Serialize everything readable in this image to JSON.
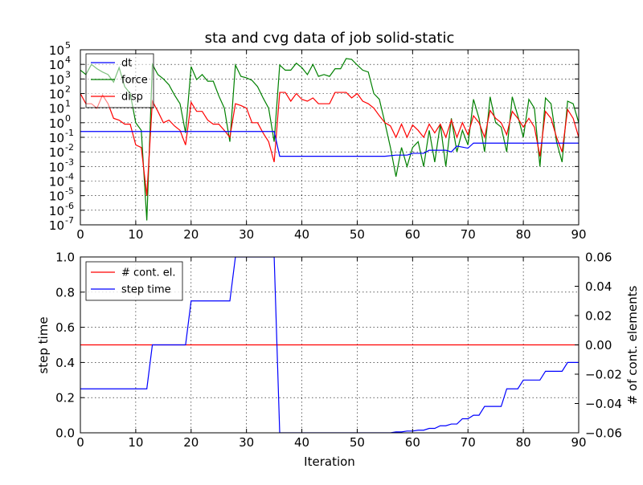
{
  "chart_data": [
    {
      "type": "line",
      "title": "sta and cvg data of job solid-static",
      "xlabel": "",
      "ylabel": "",
      "xlim": [
        0,
        90
      ],
      "ylim_log10": [
        -7,
        5
      ],
      "y_scale": "log",
      "grid": true,
      "legend_position": "top-left",
      "x_ticks": [
        "0",
        "10",
        "20",
        "30",
        "40",
        "50",
        "60",
        "70",
        "80",
        "90"
      ],
      "y_ticks_base": "10",
      "y_ticks_exp": [
        "-7",
        "-6",
        "-5",
        "-4",
        "-3",
        "-2",
        "-1",
        "0",
        "1",
        "2",
        "3",
        "4",
        "5"
      ],
      "series": [
        {
          "name": "dt",
          "color": "#0000ff",
          "points": [
            [
              0,
              0.25
            ],
            [
              35,
              0.25
            ],
            [
              36,
              0.005
            ],
            [
              55,
              0.005
            ],
            [
              57,
              0.006
            ],
            [
              59,
              0.006
            ],
            [
              60,
              0.008
            ],
            [
              62,
              0.008
            ],
            [
              63,
              0.013
            ],
            [
              66,
              0.013
            ],
            [
              67,
              0.01
            ],
            [
              68,
              0.025
            ],
            [
              70,
              0.018
            ],
            [
              71,
              0.04
            ],
            [
              90,
              0.04
            ]
          ]
        },
        {
          "name": "force",
          "color": "#008000",
          "points": [
            [
              0,
              4000
            ],
            [
              1,
              2000
            ],
            [
              2,
              10000
            ],
            [
              3,
              5000
            ],
            [
              4,
              3000
            ],
            [
              5,
              2000
            ],
            [
              6,
              600
            ],
            [
              7,
              6000
            ],
            [
              8,
              300
            ],
            [
              9,
              100
            ],
            [
              10,
              1
            ],
            [
              11,
              0.3
            ],
            [
              12,
              2e-07
            ],
            [
              13,
              10000
            ],
            [
              14,
              2000
            ],
            [
              15,
              1000
            ],
            [
              16,
              400
            ],
            [
              17,
              80
            ],
            [
              18,
              20
            ],
            [
              19,
              0.2
            ],
            [
              20,
              7000
            ],
            [
              21,
              900
            ],
            [
              22,
              2000
            ],
            [
              23,
              700
            ],
            [
              24,
              700
            ],
            [
              25,
              70
            ],
            [
              26,
              10
            ],
            [
              27,
              0.05
            ],
            [
              28,
              9000
            ],
            [
              29,
              1500
            ],
            [
              30,
              1200
            ],
            [
              31,
              800
            ],
            [
              32,
              300
            ],
            [
              33,
              50
            ],
            [
              34,
              10
            ],
            [
              35,
              0.05
            ],
            [
              36,
              9000
            ],
            [
              37,
              4000
            ],
            [
              38,
              4000
            ],
            [
              39,
              12000
            ],
            [
              40,
              6000
            ],
            [
              41,
              2000
            ],
            [
              42,
              10000
            ],
            [
              43,
              1500
            ],
            [
              44,
              2000
            ],
            [
              45,
              1500
            ],
            [
              46,
              5000
            ],
            [
              47,
              5000
            ],
            [
              48,
              25000
            ],
            [
              49,
              22000
            ],
            [
              50,
              9000
            ],
            [
              51,
              4000
            ],
            [
              52,
              3000
            ],
            [
              53,
              100
            ],
            [
              54,
              40
            ],
            [
              55,
              1
            ],
            [
              56,
              0.02
            ],
            [
              57,
              0.0002
            ],
            [
              58,
              0.02
            ],
            [
              59,
              0.001
            ],
            [
              60,
              0.02
            ],
            [
              61,
              0.05
            ],
            [
              62,
              0.001
            ],
            [
              63,
              0.3
            ],
            [
              64,
              0.002
            ],
            [
              65,
              0.8
            ],
            [
              66,
              0.001
            ],
            [
              67,
              2
            ],
            [
              68,
              0.01
            ],
            [
              69,
              0.3
            ],
            [
              70,
              0.03
            ],
            [
              71,
              40
            ],
            [
              72,
              2
            ],
            [
              73,
              0.01
            ],
            [
              74,
              60
            ],
            [
              75,
              1
            ],
            [
              76,
              0.5
            ],
            [
              77,
              0.01
            ],
            [
              78,
              60
            ],
            [
              79,
              3
            ],
            [
              80,
              0.1
            ],
            [
              81,
              40
            ],
            [
              82,
              10
            ],
            [
              83,
              0.001
            ],
            [
              84,
              50
            ],
            [
              85,
              20
            ],
            [
              86,
              0.05
            ],
            [
              87,
              0.002
            ],
            [
              88,
              30
            ],
            [
              89,
              20
            ],
            [
              90,
              1
            ]
          ]
        },
        {
          "name": "disp",
          "color": "#ff0000",
          "points": [
            [
              0,
              100
            ],
            [
              1,
              20
            ],
            [
              2,
              20
            ],
            [
              3,
              10
            ],
            [
              4,
              80
            ],
            [
              5,
              20
            ],
            [
              6,
              2
            ],
            [
              7,
              1.5
            ],
            [
              8,
              0.8
            ],
            [
              9,
              0.8
            ],
            [
              10,
              0.03
            ],
            [
              11,
              0.02
            ],
            [
              12,
              1e-05
            ],
            [
              13,
              30
            ],
            [
              14,
              6
            ],
            [
              15,
              1
            ],
            [
              16,
              1.5
            ],
            [
              17,
              0.6
            ],
            [
              18,
              0.3
            ],
            [
              19,
              0.03
            ],
            [
              20,
              25
            ],
            [
              21,
              6
            ],
            [
              22,
              6
            ],
            [
              23,
              1.5
            ],
            [
              24,
              0.8
            ],
            [
              25,
              0.8
            ],
            [
              26,
              0.3
            ],
            [
              27,
              0.1
            ],
            [
              28,
              20
            ],
            [
              29,
              15
            ],
            [
              30,
              10
            ],
            [
              31,
              1
            ],
            [
              32,
              1
            ],
            [
              33,
              0.2
            ],
            [
              34,
              0.05
            ],
            [
              35,
              0.002
            ],
            [
              36,
              120
            ],
            [
              37,
              120
            ],
            [
              38,
              30
            ],
            [
              39,
              100
            ],
            [
              40,
              40
            ],
            [
              41,
              30
            ],
            [
              42,
              50
            ],
            [
              43,
              20
            ],
            [
              44,
              20
            ],
            [
              45,
              20
            ],
            [
              46,
              120
            ],
            [
              47,
              120
            ],
            [
              48,
              120
            ],
            [
              49,
              50
            ],
            [
              50,
              100
            ],
            [
              51,
              30
            ],
            [
              52,
              20
            ],
            [
              53,
              10
            ],
            [
              54,
              3
            ],
            [
              55,
              1
            ],
            [
              56,
              0.6
            ],
            [
              57,
              0.1
            ],
            [
              58,
              0.8
            ],
            [
              59,
              0.1
            ],
            [
              60,
              0.7
            ],
            [
              61,
              0.3
            ],
            [
              62,
              0.1
            ],
            [
              63,
              0.8
            ],
            [
              64,
              0.2
            ],
            [
              65,
              0.8
            ],
            [
              66,
              0.1
            ],
            [
              67,
              1.5
            ],
            [
              68,
              0.1
            ],
            [
              69,
              1
            ],
            [
              70,
              0.15
            ],
            [
              71,
              3
            ],
            [
              72,
              1
            ],
            [
              73,
              0.1
            ],
            [
              74,
              7
            ],
            [
              75,
              2
            ],
            [
              76,
              1
            ],
            [
              77,
              0.15
            ],
            [
              78,
              6
            ],
            [
              79,
              2
            ],
            [
              80,
              0.5
            ],
            [
              81,
              2
            ],
            [
              82,
              0.5
            ],
            [
              83,
              0.005
            ],
            [
              84,
              6
            ],
            [
              85,
              2
            ],
            [
              86,
              0.1
            ],
            [
              87,
              0.01
            ],
            [
              88,
              8
            ],
            [
              89,
              2
            ],
            [
              90,
              0.1
            ]
          ]
        }
      ]
    },
    {
      "type": "line",
      "title": "",
      "xlabel": "Iteration",
      "ylabel": "step time",
      "ylabel_right": "# of cont. elements",
      "xlim": [
        0,
        90
      ],
      "ylim": [
        0,
        1
      ],
      "ylim_right": [
        -0.06,
        0.06
      ],
      "grid": true,
      "legend_position": "top-left",
      "x_ticks": [
        "0",
        "10",
        "20",
        "30",
        "40",
        "50",
        "60",
        "70",
        "80",
        "90"
      ],
      "y_ticks": [
        "0.0",
        "0.2",
        "0.4",
        "0.6",
        "0.8",
        "1.0"
      ],
      "y_ticks_right": [
        "−0.06",
        "−0.04",
        "−0.02",
        "0.00",
        "0.02",
        "0.04",
        "0.06"
      ],
      "series": [
        {
          "name": "# cont. el.",
          "color": "#ff0000",
          "axis": "right",
          "points": [
            [
              0,
              0
            ],
            [
              90,
              0
            ]
          ]
        },
        {
          "name": "step time",
          "color": "#0000ff",
          "axis": "left",
          "points": [
            [
              0,
              0.25
            ],
            [
              12,
              0.25
            ],
            [
              13,
              0.5
            ],
            [
              19,
              0.5
            ],
            [
              20,
              0.75
            ],
            [
              27,
              0.75
            ],
            [
              28,
              1.0
            ],
            [
              35,
              1.0
            ],
            [
              36,
              0.0
            ],
            [
              56,
              0.0
            ],
            [
              57,
              0.005
            ],
            [
              58,
              0.005
            ],
            [
              59,
              0.01
            ],
            [
              60,
              0.01
            ],
            [
              61,
              0.015
            ],
            [
              62,
              0.015
            ],
            [
              63,
              0.025
            ],
            [
              64,
              0.025
            ],
            [
              65,
              0.04
            ],
            [
              66,
              0.04
            ],
            [
              67,
              0.05
            ],
            [
              68,
              0.05
            ],
            [
              69,
              0.08
            ],
            [
              70,
              0.08
            ],
            [
              71,
              0.1
            ],
            [
              72,
              0.1
            ],
            [
              73,
              0.15
            ],
            [
              74,
              0.15
            ],
            [
              76,
              0.15
            ],
            [
              77,
              0.25
            ],
            [
              79,
              0.25
            ],
            [
              80,
              0.3
            ],
            [
              83,
              0.3
            ],
            [
              84,
              0.35
            ],
            [
              87,
              0.35
            ],
            [
              88,
              0.4
            ],
            [
              90,
              0.4
            ]
          ]
        }
      ]
    }
  ]
}
